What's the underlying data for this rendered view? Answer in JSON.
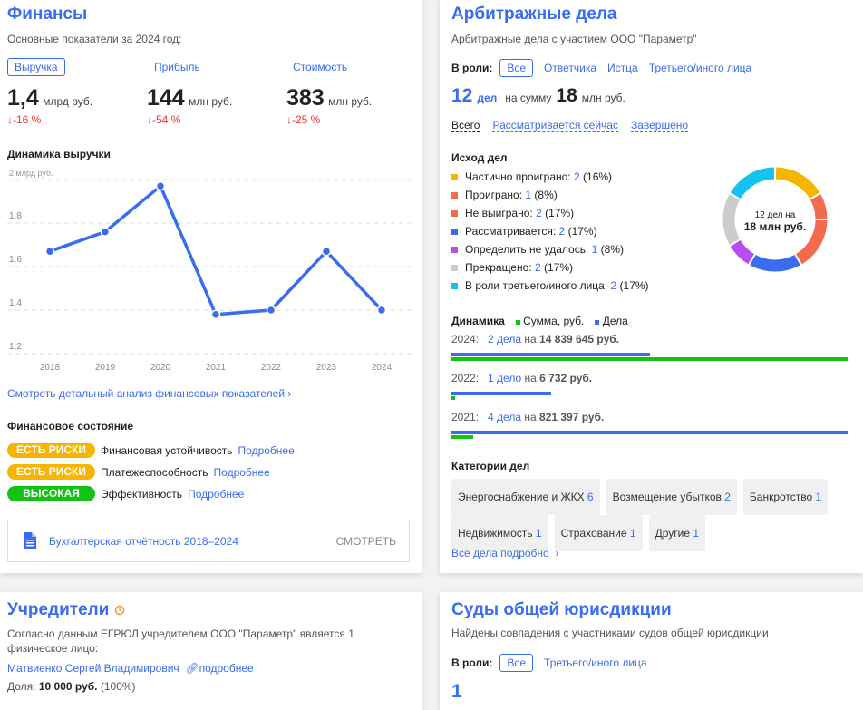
{
  "finance": {
    "title": "Финансы",
    "subtitle": "Основные показатели за 2024 год:",
    "tabs": [
      {
        "label": "Выручка",
        "active": true
      },
      {
        "label": "Прибыль"
      },
      {
        "label": "Стоимость"
      }
    ],
    "metrics": [
      {
        "value": "1,4",
        "unit": "млрд руб.",
        "change": "↓-16 %"
      },
      {
        "value": "144",
        "unit": "млн руб.",
        "change": "↓-54 %"
      },
      {
        "value": "383",
        "unit": "млн руб.",
        "change": "↓-25 %"
      }
    ],
    "chart_title": "Динамика выручки",
    "detail_link": "Смотреть детальный анализ финансовых показателей",
    "state_title": "Финансовое состояние",
    "states": [
      {
        "badge": "ЕСТЬ РИСКИ",
        "color": "#f7b500",
        "label": "Финансовая устойчивость",
        "link": "Подробнее"
      },
      {
        "badge": "ЕСТЬ РИСКИ",
        "color": "#f7b500",
        "label": "Платежеспособность",
        "link": "Подробнее"
      },
      {
        "badge": "ВЫСОКАЯ",
        "color": "#13c313",
        "label": "Эффективность",
        "link": "Подробнее"
      }
    ],
    "report": {
      "label": "Бухгалтерская отчётность 2018–2024",
      "action": "СМОТРЕТЬ",
      "icon": "document-icon"
    }
  },
  "chart_data": {
    "type": "line",
    "title": "Динамика выручки",
    "ylabel": "2 млрд руб.",
    "categories": [
      "2018",
      "2019",
      "2020",
      "2021",
      "2022",
      "2023",
      "2024"
    ],
    "values": [
      1.67,
      1.76,
      1.97,
      1.38,
      1.4,
      1.67,
      1.4
    ],
    "yticks": [
      "1,2",
      "1,4",
      "1,6",
      "1,8"
    ],
    "ylim": [
      1.2,
      2.0
    ],
    "grid": true,
    "color": "#3a6cf0"
  },
  "arbitr": {
    "title": "Арбитражные дела",
    "subtitle": "Арбитражные дела с участием ООО \"Параметр\"",
    "role_label": "В роли:",
    "roles": [
      "Все",
      "Ответчика",
      "Истца",
      "Третьего/иного лица"
    ],
    "count": "12",
    "count_unit": "дел",
    "sum_label": "на сумму",
    "sum": "18",
    "sum_unit": "млн руб.",
    "filters": [
      "Всего",
      "Рассматривается сейчас",
      "Завершено"
    ],
    "outcome_title": "Исход дел",
    "outcomes": [
      {
        "label": "Частично проиграно:",
        "n": "2",
        "pct": "(16%)",
        "color": "#f7b500"
      },
      {
        "label": "Проиграно:",
        "n": "1",
        "pct": "(8%)",
        "color": "#f26b4d"
      },
      {
        "label": "Не выиграно:",
        "n": "2",
        "pct": "(17%)",
        "color": "#f26b4d"
      },
      {
        "label": "Рассматривается:",
        "n": "2",
        "pct": "(17%)",
        "color": "#3a6cf0"
      },
      {
        "label": "Определить не удалось:",
        "n": "1",
        "pct": "(8%)",
        "color": "#b94ef0"
      },
      {
        "label": "Прекращено:",
        "n": "2",
        "pct": "(17%)",
        "color": "#cccccc"
      },
      {
        "label": "В роли третьего/иного лица:",
        "n": "2",
        "pct": "(17%)",
        "color": "#14c3ee"
      }
    ],
    "donut_line1": "12 дел на",
    "donut_line2": "18 млн руб.",
    "dyn_title": "Динамика",
    "dyn_legend_sum": "Сумма, руб.",
    "dyn_legend_cases": "Дела",
    "sum_color": "#13c313",
    "cases_color": "#3a6cf0",
    "dynamics": [
      {
        "year": "2024:",
        "cases": "2 дела",
        "na": "на",
        "sum": "14 839 645 руб.",
        "n": 2,
        "amount": 14839645
      },
      {
        "year": "2022:",
        "cases": "1 дело",
        "na": "на",
        "sum": "6 732 руб.",
        "n": 1,
        "amount": 6732
      },
      {
        "year": "2021:",
        "cases": "4 дела",
        "na": "на",
        "sum": "821 397 руб.",
        "n": 4,
        "amount": 821397
      }
    ],
    "cat_title": "Категории дел",
    "categories": [
      {
        "label": "Энергоснабжение и ЖКХ",
        "n": "6"
      },
      {
        "label": "Возмещение убытков",
        "n": "2"
      },
      {
        "label": "Банкротство",
        "n": "1"
      },
      {
        "label": "Недвижимость",
        "n": "1"
      },
      {
        "label": "Страхование",
        "n": "1"
      },
      {
        "label": "Другие",
        "n": "1"
      }
    ],
    "all_link": "Все дела подробно"
  },
  "founders": {
    "title": "Учредители",
    "text": "Согласно данным ЕГРЮЛ учредителем ООО \"Параметр\" является 1 физическое лицо:",
    "name": "Матвиенко Сергей Владимирович",
    "more": "подробнее",
    "share_label": "Доля:",
    "share_value": "10 000 руб.",
    "share_pct": "(100%)"
  },
  "courts": {
    "title": "Суды общей юрисдикции",
    "subtitle": "Найдены совпадения с участниками судов общей юрисдикции",
    "role_label": "В роли:",
    "roles": [
      "Все",
      "Третьего/иного лица"
    ],
    "count": "1"
  }
}
